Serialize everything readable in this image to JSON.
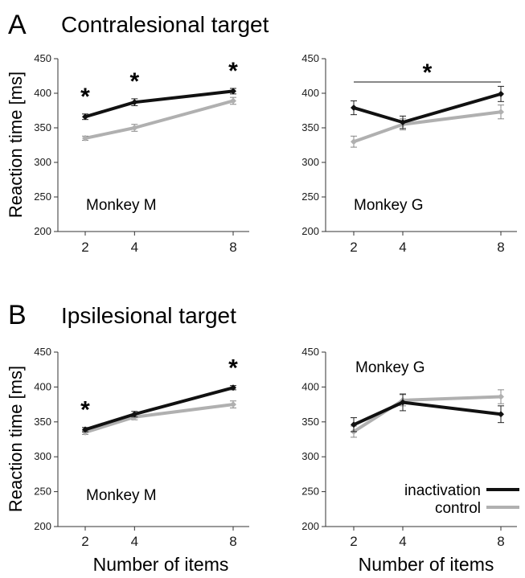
{
  "figure": {
    "panel_A": {
      "letter": "A",
      "title": "Contralesional target"
    },
    "panel_B": {
      "letter": "B",
      "title": "Ipsilesional target"
    },
    "ylabel": "Reaction time [ms]",
    "xlabel": "Number of items",
    "legend": [
      {
        "label": "inactivation",
        "color": "#111111"
      },
      {
        "label": "control",
        "color": "#b0b0b0"
      }
    ]
  },
  "chart_data": [
    {
      "type": "line",
      "monkey_label": "Monkey M",
      "x": [
        2,
        4,
        8
      ],
      "xticks": [
        "2",
        "4",
        "8"
      ],
      "ylim": [
        200,
        450
      ],
      "yticks": [
        "200",
        "250",
        "300",
        "350",
        "400",
        "450"
      ],
      "series": [
        {
          "name": "inactivation",
          "color": "#111111",
          "values": [
            366,
            387,
            403
          ],
          "errors": [
            4,
            5,
            4
          ]
        },
        {
          "name": "control",
          "color": "#b0b0b0",
          "values": [
            335,
            350,
            389
          ],
          "errors": [
            3,
            5,
            5
          ]
        }
      ],
      "significance": [
        {
          "x": 2,
          "label": "*"
        },
        {
          "x": 4,
          "label": "*"
        },
        {
          "x": 8,
          "label": "*"
        }
      ]
    },
    {
      "type": "line",
      "monkey_label": "Monkey G",
      "x": [
        2,
        4,
        8
      ],
      "xticks": [
        "2",
        "4",
        "8"
      ],
      "ylim": [
        200,
        450
      ],
      "yticks": [
        "200",
        "250",
        "300",
        "350",
        "400",
        "450"
      ],
      "series": [
        {
          "name": "inactivation",
          "color": "#111111",
          "values": [
            379,
            358,
            399
          ],
          "errors": [
            10,
            9,
            11
          ]
        },
        {
          "name": "control",
          "color": "#b0b0b0",
          "values": [
            330,
            355,
            373
          ],
          "errors": [
            8,
            8,
            10
          ]
        }
      ],
      "significance_bracket": {
        "from": 2,
        "to": 8,
        "label": "*"
      }
    },
    {
      "type": "line",
      "monkey_label": "Monkey M",
      "x": [
        2,
        4,
        8
      ],
      "xticks": [
        "2",
        "4",
        "8"
      ],
      "ylim": [
        200,
        450
      ],
      "yticks": [
        "200",
        "250",
        "300",
        "350",
        "400",
        "450"
      ],
      "series": [
        {
          "name": "inactivation",
          "color": "#111111",
          "values": [
            339,
            361,
            399
          ],
          "errors": [
            3,
            4,
            3
          ]
        },
        {
          "name": "control",
          "color": "#b0b0b0",
          "values": [
            335,
            357,
            375
          ],
          "errors": [
            3,
            4,
            5
          ]
        }
      ],
      "significance": [
        {
          "x": 2,
          "label": "*"
        },
        {
          "x": 8,
          "label": "*"
        }
      ]
    },
    {
      "type": "line",
      "monkey_label": "Monkey G",
      "x": [
        2,
        4,
        8
      ],
      "xticks": [
        "2",
        "4",
        "8"
      ],
      "ylim": [
        200,
        450
      ],
      "yticks": [
        "200",
        "250",
        "300",
        "350",
        "400",
        "450"
      ],
      "series": [
        {
          "name": "inactivation",
          "color": "#111111",
          "values": [
            346,
            378,
            361
          ],
          "errors": [
            10,
            12,
            12
          ]
        },
        {
          "name": "control",
          "color": "#b0b0b0",
          "values": [
            336,
            381,
            386
          ],
          "errors": [
            8,
            8,
            10
          ]
        }
      ],
      "significance": []
    }
  ]
}
